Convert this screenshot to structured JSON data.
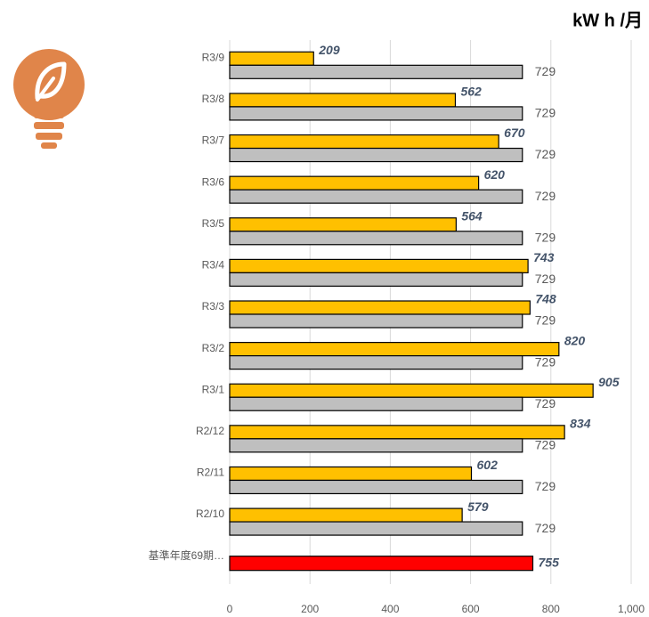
{
  "chart_data": {
    "type": "bar",
    "orientation": "horizontal",
    "unit": "kW h /月",
    "categories": [
      "R3/9",
      "R3/8",
      "R3/7",
      "R3/6",
      "R3/5",
      "R3/4",
      "R3/3",
      "R3/2",
      "R3/1",
      "R2/12",
      "R2/11",
      "R2/10",
      "基準年度69期…"
    ],
    "series": [
      {
        "colors": [
          "#ffc000",
          "#ffc000",
          "#ffc000",
          "#ffc000",
          "#ffc000",
          "#ffc000",
          "#ffc000",
          "#ffc000",
          "#ffc000",
          "#ffc000",
          "#ffc000",
          "#ffc000",
          "#ff0000"
        ],
        "values": [
          209,
          562,
          670,
          620,
          564,
          743,
          748,
          820,
          905,
          834,
          602,
          579,
          755
        ]
      },
      {
        "color": "#bfbfbf",
        "values": [
          729,
          729,
          729,
          729,
          729,
          729,
          729,
          729,
          729,
          729,
          729,
          729,
          null
        ]
      }
    ],
    "xlim": [
      0,
      1000
    ],
    "xticks": [
      0,
      200,
      400,
      600,
      800,
      {
        "value": 1000,
        "label": "1,000"
      }
    ],
    "grid": true
  }
}
